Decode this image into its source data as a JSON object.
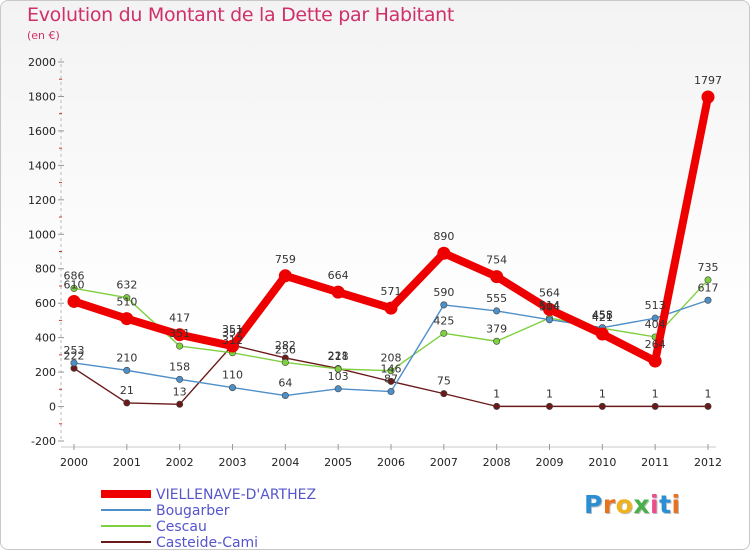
{
  "title": "Evolution du Montant de la Dette par Habitant",
  "unit_label": "(en €)",
  "logo": {
    "letters": [
      "P",
      "r",
      "o",
      "x",
      "i",
      "t",
      "i"
    ],
    "colors": [
      "#2b8fd6",
      "#e8731f",
      "#f0b21a",
      "#48b04a",
      "#e94f8a",
      "#2b8fd6",
      "#e8731f"
    ]
  },
  "chart_data": {
    "type": "line",
    "title": "Evolution du Montant de la Dette par Habitant",
    "ylabel": "(en €)",
    "ylim": [
      -200,
      2000
    ],
    "yticks": [
      -200,
      0,
      200,
      400,
      600,
      800,
      1000,
      1200,
      1400,
      1600,
      1800,
      2000
    ],
    "x": [
      "2000",
      "2001",
      "2002",
      "2003",
      "2004",
      "2005",
      "2006",
      "2007",
      "2008",
      "2009",
      "2010",
      "2011",
      "2012"
    ],
    "grid": false,
    "legend_position": "bottom-left",
    "series": [
      {
        "name": "VIELLENAVE-D'ARTHEZ",
        "color": "#ee0000",
        "values": [
          610,
          510,
          417,
          351,
          759,
          664,
          571,
          890,
          754,
          564,
          421,
          264,
          1797
        ]
      },
      {
        "name": "Bougarber",
        "color": "#4f8fc8",
        "values": [
          253,
          210,
          158,
          110,
          64,
          103,
          87,
          590,
          555,
          504,
          458,
          513,
          617
        ]
      },
      {
        "name": "Cescau",
        "color": "#7fd040",
        "values": [
          686,
          632,
          351,
          312,
          256,
          218,
          208,
          425,
          379,
          514,
          455,
          404,
          735
        ]
      },
      {
        "name": "Casteide-Cami",
        "color": "#6b1a1a",
        "values": [
          222,
          21,
          13,
          357,
          282,
          221,
          146,
          75,
          1,
          1,
          1,
          1,
          1
        ]
      }
    ]
  }
}
